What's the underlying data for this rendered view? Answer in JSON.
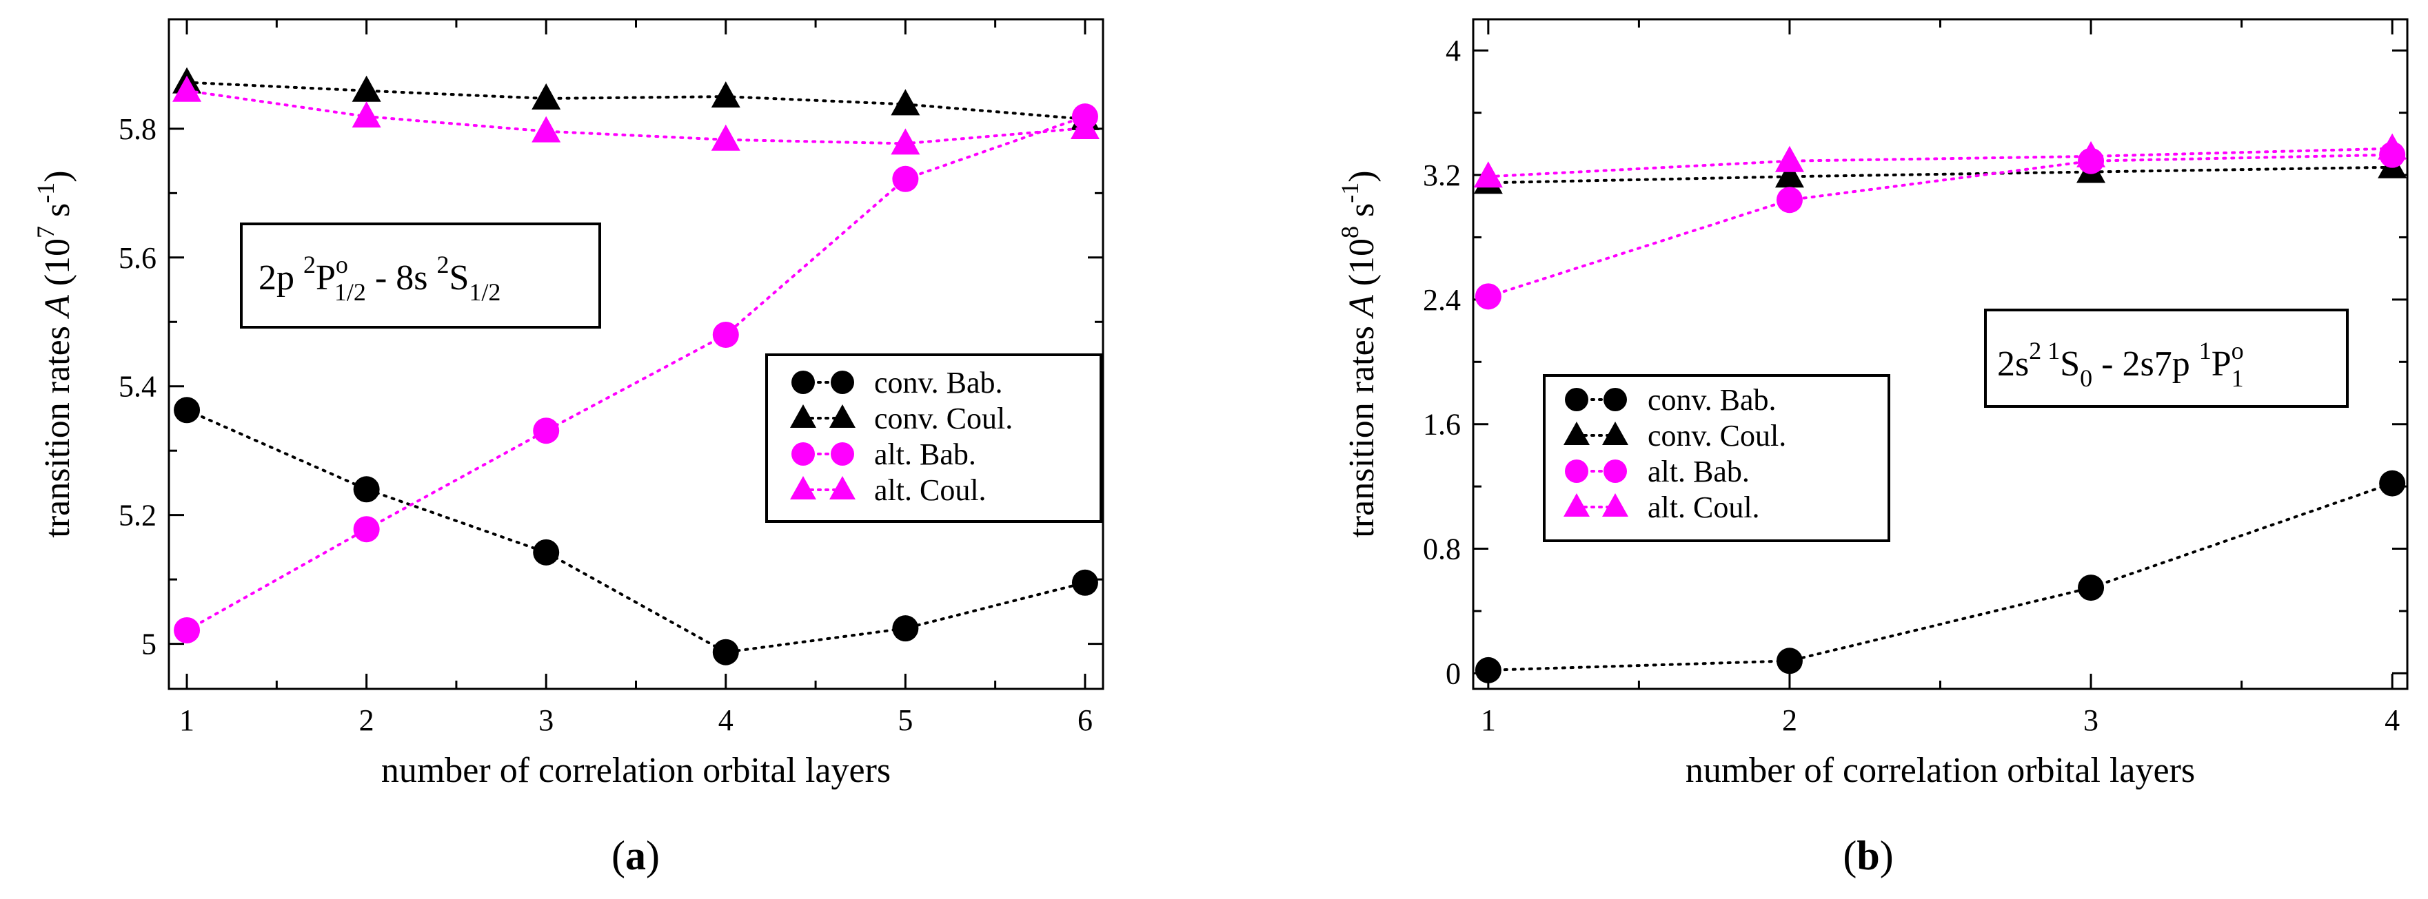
{
  "figure": {
    "captions": [
      {
        "open": "(",
        "letter": "a",
        "close": ")"
      },
      {
        "open": "(",
        "letter": "b",
        "close": ")"
      }
    ]
  },
  "chart_data": [
    {
      "type": "line",
      "panel": "a",
      "xlabel": "number of correlation orbital layers",
      "ylabel": {
        "pre": "transition rates ",
        "symbol": "A",
        "unit_open": "  (10",
        "unit_exp": "7",
        "unit_mid": " s",
        "unit_exp2": "-1",
        "unit_close": ")"
      },
      "xlim": [
        0.9,
        6.1
      ],
      "ylim": [
        4.93,
        5.97
      ],
      "xticks": [
        1,
        2,
        3,
        4,
        5,
        6
      ],
      "yticks": [
        5.0,
        5.2,
        5.4,
        5.6,
        5.8
      ],
      "ytick_labels": [
        "5",
        "5.2",
        "5.4",
        "5.6",
        "5.8"
      ],
      "annotation": {
        "parts": [
          "2p ",
          "2",
          "P",
          "o",
          "1/2",
          " - 8s ",
          "2",
          "S",
          "1/2"
        ]
      },
      "legend_position": "right-middle",
      "series": [
        {
          "name": "conv. Bab.",
          "marker": "circle",
          "color": "#000000",
          "x": [
            1,
            2,
            3,
            4,
            5,
            6
          ],
          "y": [
            5.363,
            5.24,
            5.142,
            4.987,
            5.024,
            5.095
          ]
        },
        {
          "name": "conv. Coul.",
          "marker": "triangle",
          "color": "#000000",
          "x": [
            1,
            2,
            3,
            4,
            5,
            6
          ],
          "y": [
            5.872,
            5.859,
            5.847,
            5.85,
            5.838,
            5.815
          ]
        },
        {
          "name": "alt. Bab.",
          "marker": "circle",
          "color": "#ff00ff",
          "x": [
            1,
            2,
            3,
            4,
            5,
            6
          ],
          "y": [
            5.021,
            5.178,
            5.331,
            5.48,
            5.722,
            5.819
          ]
        },
        {
          "name": "alt. Coul.",
          "marker": "triangle",
          "color": "#ff00ff",
          "x": [
            1,
            2,
            3,
            4,
            5,
            6
          ],
          "y": [
            5.859,
            5.819,
            5.796,
            5.783,
            5.777,
            5.801
          ]
        }
      ]
    },
    {
      "type": "line",
      "panel": "b",
      "xlabel": "number of correlation orbital layers",
      "ylabel": {
        "pre": "transition rates ",
        "symbol": "A",
        "unit_open": "  (10",
        "unit_exp": "8",
        "unit_mid": " s",
        "unit_exp2": "-1",
        "unit_close": ")"
      },
      "xlim": [
        0.95,
        4.05
      ],
      "ylim": [
        -0.1,
        4.2
      ],
      "xticks": [
        1,
        2,
        3,
        4
      ],
      "yticks": [
        0,
        0.8,
        1.6,
        2.4,
        3.2,
        4.0
      ],
      "ytick_labels": [
        "0",
        "0.8",
        "1.6",
        "2.4",
        "3.2",
        "4"
      ],
      "annotation": {
        "parts": [
          "2s",
          "2 1",
          "S",
          "0",
          " - 2s7p ",
          "1",
          "P",
          "o",
          "1"
        ]
      },
      "legend_position": "left-middle",
      "series": [
        {
          "name": "conv. Bab.",
          "marker": "circle",
          "color": "#000000",
          "x": [
            1,
            2,
            3,
            4
          ],
          "y": [
            0.02,
            0.08,
            0.55,
            1.22
          ]
        },
        {
          "name": "conv. Coul.",
          "marker": "triangle",
          "color": "#000000",
          "x": [
            1,
            2,
            3,
            4
          ],
          "y": [
            3.15,
            3.19,
            3.22,
            3.25
          ]
        },
        {
          "name": "alt. Bab.",
          "marker": "circle",
          "color": "#ff00ff",
          "x": [
            1,
            2,
            3,
            4
          ],
          "y": [
            2.42,
            3.04,
            3.29,
            3.33
          ]
        },
        {
          "name": "alt. Coul.",
          "marker": "triangle",
          "color": "#ff00ff",
          "x": [
            1,
            2,
            3,
            4
          ],
          "y": [
            3.19,
            3.29,
            3.32,
            3.37
          ]
        }
      ]
    }
  ]
}
